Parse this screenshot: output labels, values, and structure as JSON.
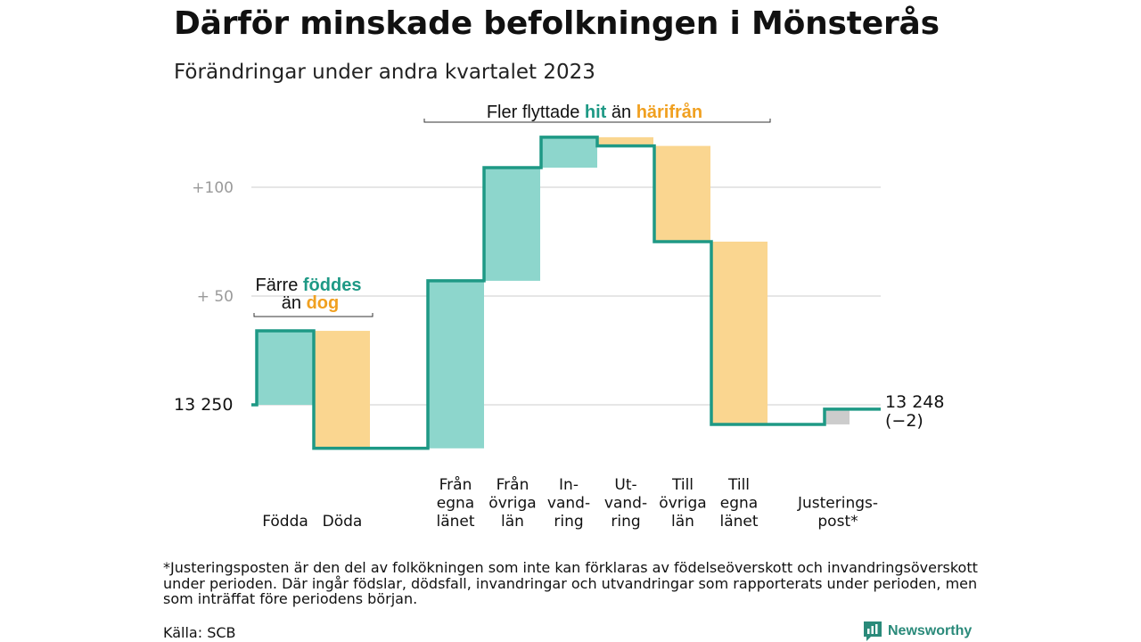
{
  "title": "Därför minskade befolkningen i Mönsterås",
  "subtitle": "Förändringar under andra kvartalet 2023",
  "footnote": "*Justeringsposten är den del av folkökningen som inte kan förklaras av födelseöverskott och invandringsöverskott under perioden. Där ingår födslar, dödsfall, invandringar och utvandringar som rapporterats under perioden, men som inträffat före periodens början.",
  "source": "Källa: SCB",
  "brand": "Newsworthy",
  "colors": {
    "positive": "#8dd6cc",
    "negative": "#fad690",
    "adjustment": "#cccccc",
    "line": "#1e9985",
    "teal_text": "#1e9985",
    "orange_text": "#f0a020",
    "grid": "#dddddd",
    "tick": "#9a9a9a"
  },
  "chart_data": {
    "type": "waterfall",
    "start_value": 13250,
    "start_label": "13  250",
    "end_label": "13 248",
    "change_label": "(−2)",
    "y_ticks": [
      {
        "value": 13300,
        "label": "+  50"
      },
      {
        "value": 13350,
        "label": "+100"
      }
    ],
    "ylim": [
      13225,
      13395
    ],
    "grid": true,
    "steps": [
      {
        "label": [
          "Födda"
        ],
        "value": 34,
        "kind": "positive"
      },
      {
        "label": [
          "Döda"
        ],
        "value": -54,
        "kind": "negative"
      },
      {
        "label": [
          "Från",
          "egna",
          "länet"
        ],
        "value": 77,
        "kind": "positive"
      },
      {
        "label": [
          "Från",
          "övriga",
          "län"
        ],
        "value": 52,
        "kind": "positive"
      },
      {
        "label": [
          "In-",
          "vand-",
          "ring"
        ],
        "value": 14,
        "kind": "positive"
      },
      {
        "label": [
          "Ut-",
          "vand-",
          "ring"
        ],
        "value": -4,
        "kind": "negative"
      },
      {
        "label": [
          "Till",
          "övriga",
          "län"
        ],
        "value": -44,
        "kind": "negative"
      },
      {
        "label": [
          "Till",
          "egna",
          "länet"
        ],
        "value": -84,
        "kind": "negative"
      },
      {
        "label": [
          "Justerings-",
          "post*"
        ],
        "value": 7,
        "kind": "adjustment"
      }
    ],
    "annotations": [
      {
        "prefix": "Färre",
        "highlight": "föddes",
        "line2_prefix": "än",
        "line2_highlight": "dog"
      },
      {
        "prefix": "Fler flyttade",
        "highlight": "hit",
        "middle": "än",
        "highlight2": "härifrån"
      }
    ]
  }
}
